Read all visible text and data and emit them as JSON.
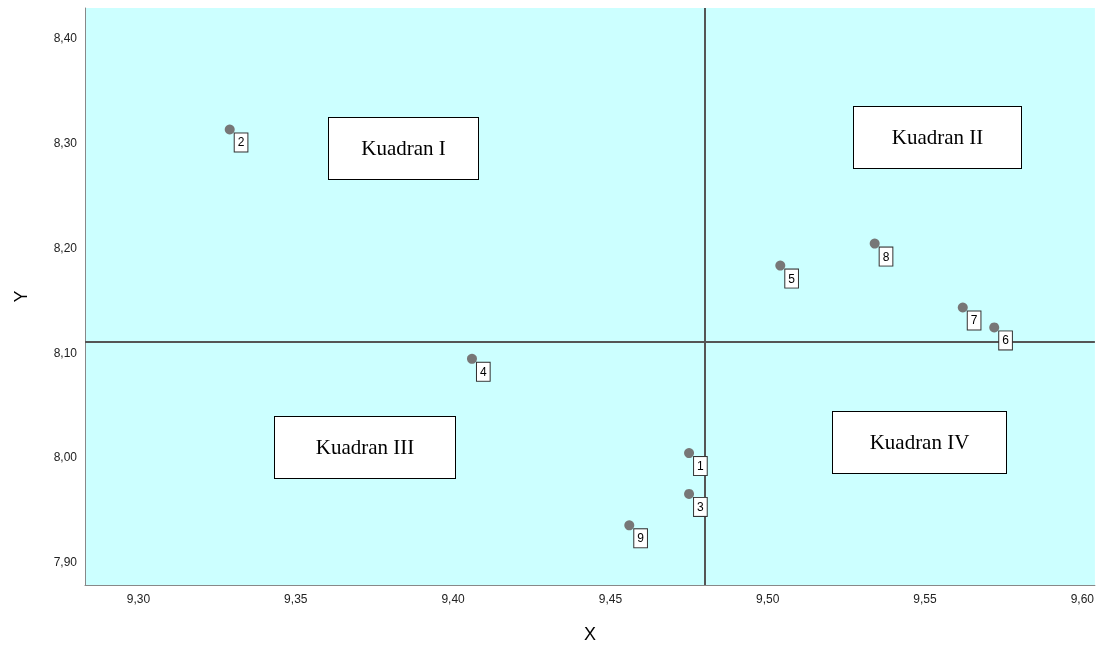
{
  "chart_data": {
    "type": "scatter",
    "xlabel": "X",
    "ylabel": "Y",
    "x": [
      9.475,
      9.329,
      9.475,
      9.406,
      9.504,
      9.572,
      9.562,
      9.534,
      9.456
    ],
    "values": [
      8.004,
      8.313,
      7.965,
      8.094,
      8.183,
      8.124,
      8.143,
      8.204,
      7.935
    ],
    "color": "#777777",
    "marker": "circle",
    "grid": false,
    "xlim": [
      9.283,
      9.604
    ],
    "xticks": [
      {
        "value": 9.3,
        "label": "9,30"
      },
      {
        "value": 9.35,
        "label": "9,35"
      },
      {
        "value": 9.4,
        "label": "9,40"
      },
      {
        "value": 9.45,
        "label": "9,45"
      },
      {
        "value": 9.5,
        "label": "9,50"
      },
      {
        "value": 9.55,
        "label": "9,55"
      },
      {
        "value": 9.6,
        "label": "9,60"
      }
    ],
    "ylim": [
      7.878,
      8.429
    ],
    "yticks": [
      {
        "value": 7.9,
        "label": "7,90"
      },
      {
        "value": 8.0,
        "label": "8,00"
      },
      {
        "value": 8.1,
        "label": "8,10"
      },
      {
        "value": 8.2,
        "label": "8,20"
      },
      {
        "value": 8.3,
        "label": "8,30"
      },
      {
        "value": 8.4,
        "label": "8,40"
      }
    ],
    "ref_lines": [
      {
        "axis": "x",
        "value": 9.479,
        "color": "#555555"
      },
      {
        "axis": "y",
        "value": 8.108,
        "color": "#555555"
      }
    ],
    "annotations": [
      "Kuadran I",
      "Kuadran II",
      "Kuadran III",
      "Kuadran IV",
      {
        "text": "1",
        "x": 9.475,
        "y": 8.004
      },
      {
        "text": "2",
        "x": 9.329,
        "y": 8.313
      },
      {
        "text": "3",
        "x": 9.475,
        "y": 7.965
      },
      {
        "text": "4",
        "x": 9.406,
        "y": 8.094
      },
      {
        "text": "5",
        "x": 9.504,
        "y": 8.183
      },
      {
        "text": "6",
        "x": 9.572,
        "y": 8.124
      },
      {
        "text": "7",
        "x": 9.562,
        "y": 8.143
      },
      {
        "text": "8",
        "x": 9.534,
        "y": 8.204
      },
      {
        "text": "9",
        "x": 9.456,
        "y": 7.935
      }
    ]
  }
}
